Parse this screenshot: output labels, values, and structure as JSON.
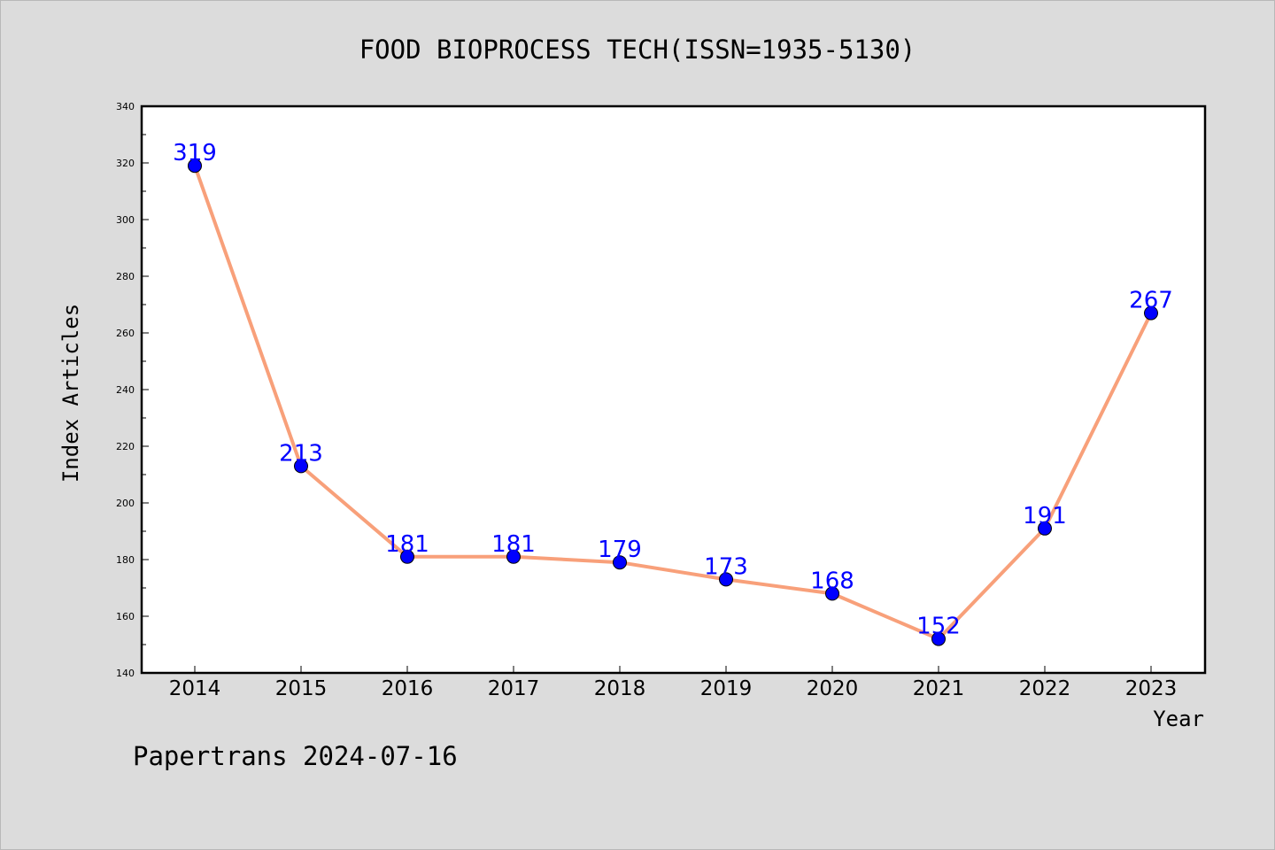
{
  "chart_data": {
    "type": "line",
    "title": "FOOD BIOPROCESS TECH(ISSN=1935-5130)",
    "xlabel": "Year",
    "ylabel": "Index Articles",
    "categories": [
      "2014",
      "2015",
      "2016",
      "2017",
      "2018",
      "2019",
      "2020",
      "2021",
      "2022",
      "2023"
    ],
    "values": [
      319,
      213,
      181,
      181,
      179,
      173,
      168,
      152,
      191,
      267
    ],
    "ylim": [
      140,
      340
    ],
    "yticks": [
      140,
      160,
      180,
      200,
      220,
      240,
      260,
      280,
      300,
      320,
      340
    ],
    "grid": false,
    "colors": {
      "line": "#f8a07a",
      "marker": "#0000ff",
      "data_label": "#0000ff"
    }
  },
  "footer": "Papertrans 2024-07-16"
}
